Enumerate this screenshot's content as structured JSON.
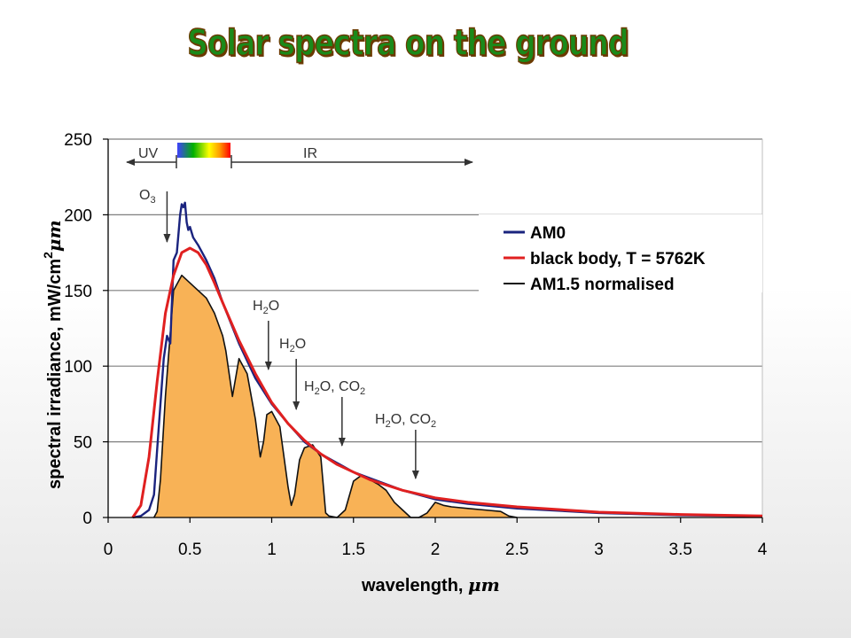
{
  "slide": {
    "title": "Solar spectra on the ground"
  },
  "chart_data": {
    "type": "area",
    "title": "Solar spectra on the ground",
    "xlabel": "wavelength, ",
    "xlabel_unit": "μm",
    "ylabel": "spectral irradiance, mW/cm",
    "ylabel_sup": "2",
    "ylabel_unit": "μm",
    "xlim": [
      0,
      4
    ],
    "ylim": [
      0,
      250
    ],
    "x_ticks": [
      0,
      0.5,
      1,
      1.5,
      2,
      2.5,
      3,
      3.5,
      4
    ],
    "x_tick_labels": [
      "0",
      "0.5",
      "1",
      "1.5",
      "2",
      "2.5",
      "3",
      "3.5",
      "4"
    ],
    "y_ticks": [
      0,
      50,
      100,
      150,
      200,
      250
    ],
    "y_tick_labels": [
      "0",
      "50",
      "100",
      "150",
      "200",
      "250"
    ],
    "grid": "horizontal",
    "legend_position": "top-right",
    "series": [
      {
        "name": "AM0",
        "color": "#1a237e",
        "x": [
          0.15,
          0.2,
          0.25,
          0.28,
          0.3,
          0.32,
          0.34,
          0.36,
          0.38,
          0.4,
          0.42,
          0.44,
          0.45,
          0.46,
          0.47,
          0.48,
          0.49,
          0.5,
          0.52,
          0.55,
          0.6,
          0.65,
          0.7,
          0.8,
          0.9,
          1.0,
          1.1,
          1.2,
          1.3,
          1.4,
          1.5,
          1.6,
          1.8,
          2.0,
          2.2,
          2.5,
          3.0,
          3.5,
          4.0
        ],
        "values": [
          0,
          1,
          5,
          15,
          45,
          75,
          105,
          120,
          115,
          170,
          175,
          200,
          207,
          205,
          208,
          195,
          190,
          192,
          185,
          180,
          170,
          158,
          142,
          115,
          92,
          75,
          62,
          50,
          42,
          36,
          30,
          26,
          18,
          12,
          9,
          6,
          3,
          1.5,
          0.8
        ]
      },
      {
        "name": "black body, T = 5762K",
        "color": "#e02020",
        "x": [
          0.15,
          0.2,
          0.25,
          0.3,
          0.35,
          0.4,
          0.45,
          0.5,
          0.55,
          0.6,
          0.65,
          0.7,
          0.8,
          0.9,
          1.0,
          1.1,
          1.2,
          1.3,
          1.4,
          1.5,
          1.6,
          1.8,
          2.0,
          2.2,
          2.5,
          3.0,
          3.5,
          4.0
        ],
        "values": [
          0,
          8,
          40,
          90,
          135,
          160,
          175,
          178,
          175,
          167,
          155,
          142,
          117,
          95,
          76,
          62,
          51,
          42,
          35,
          30,
          25,
          18,
          13,
          10,
          7,
          3.5,
          2,
          1
        ]
      },
      {
        "name": "AM1.5 normalised",
        "color": "#111111",
        "fill": "#f8b256",
        "x": [
          0.28,
          0.3,
          0.32,
          0.35,
          0.4,
          0.45,
          0.5,
          0.55,
          0.6,
          0.65,
          0.7,
          0.72,
          0.76,
          0.8,
          0.85,
          0.9,
          0.93,
          0.95,
          0.97,
          1.0,
          1.05,
          1.1,
          1.12,
          1.14,
          1.17,
          1.2,
          1.25,
          1.3,
          1.33,
          1.35,
          1.4,
          1.45,
          1.5,
          1.55,
          1.6,
          1.65,
          1.7,
          1.75,
          1.8,
          1.85,
          1.9,
          1.95,
          2.0,
          2.05,
          2.1,
          2.2,
          2.3,
          2.4,
          2.45,
          2.5
        ],
        "values": [
          0,
          4,
          25,
          80,
          150,
          160,
          155,
          150,
          145,
          135,
          120,
          110,
          80,
          105,
          95,
          65,
          40,
          50,
          68,
          70,
          60,
          20,
          8,
          15,
          38,
          46,
          48,
          40,
          3,
          1,
          0,
          5,
          24,
          28,
          25,
          22,
          18,
          10,
          5,
          0,
          0,
          3,
          10,
          8,
          7,
          6,
          5,
          4,
          1,
          0
        ]
      }
    ],
    "annotations": {
      "spectrum": {
        "uv": "UV",
        "ir": "IR"
      },
      "absorption": [
        {
          "label": "O",
          "sub": "3",
          "suffix": "",
          "x": 0.36
        },
        {
          "label": "H",
          "sub": "2",
          "suffix": "O",
          "x": 0.98
        },
        {
          "label": "H",
          "sub": "2",
          "suffix": "O",
          "x": 1.15
        },
        {
          "label": "H",
          "sub": "2",
          "suffix": "O, CO",
          "sub2": "2",
          "x": 1.43
        },
        {
          "label": "H",
          "sub": "2",
          "suffix": "O, CO",
          "sub2": "2",
          "x": 1.88
        }
      ]
    }
  }
}
